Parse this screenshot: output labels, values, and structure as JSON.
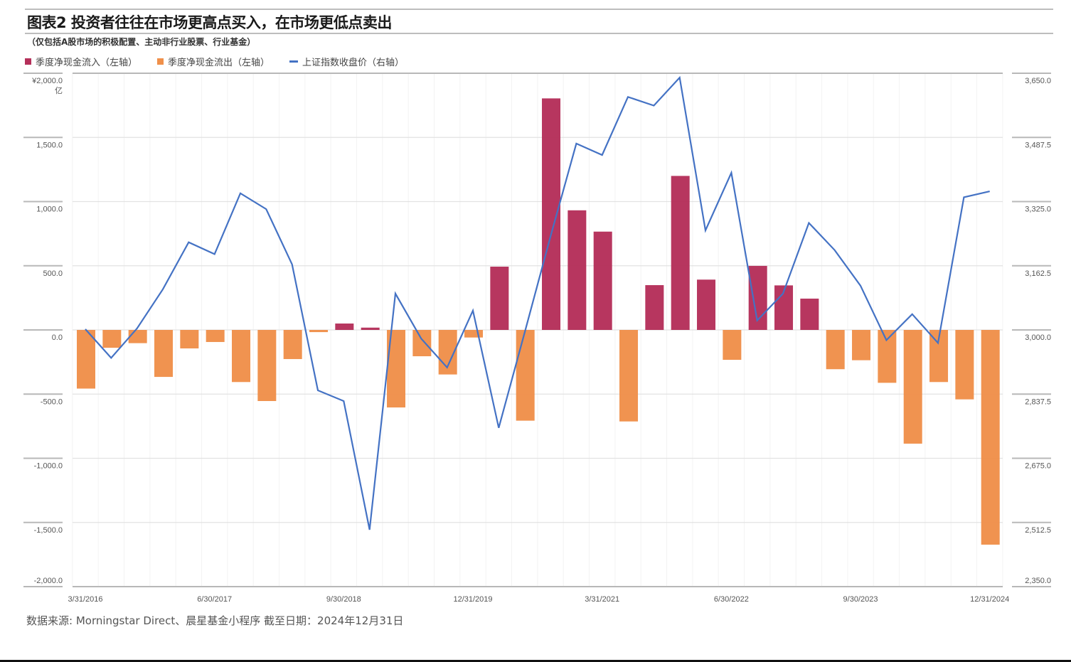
{
  "header": {
    "title": "图表2 投资者往往在市场更高点买入，在市场更低点卖出",
    "subtitle": "（仅包括A股市场的积极配置、主动非行业股票、行业基金）"
  },
  "legend": [
    {
      "label": "季度净现金流入（左轴）",
      "type": "square",
      "color": "#b5305a"
    },
    {
      "label": "季度净现金流出（左轴）",
      "type": "square",
      "color": "#f0904a"
    },
    {
      "label": "上证指数收盘价（右轴）",
      "type": "line",
      "color": "#4472c4"
    }
  ],
  "footer": {
    "source": "数据来源: Morningstar Direct、晨星基金小程序 截至日期：2024年12月31日"
  },
  "chart_data": {
    "type": "bar+line",
    "title": "图表2 投资者往往在市场更高点买入，在市场更低点卖出",
    "subtitle": "（仅包括A股市场的积极配置、主动非行业股票、行业基金）",
    "left_axis": {
      "label": "亿",
      "ylim": [
        -2000,
        2000
      ],
      "ticks": [
        "¥2,000.0",
        "1,500.0",
        "1,000.0",
        "500.0",
        "0.0",
        "-500.0",
        "-1,000.0",
        "-1,500.0",
        "-2,000.0"
      ],
      "tick_values": [
        2000,
        1500,
        1000,
        500,
        0,
        -500,
        -1000,
        -1500,
        -2000
      ]
    },
    "right_axis": {
      "ylim": [
        2350,
        3650
      ],
      "ticks": [
        "3,650.0",
        "3,487.5",
        "3,325.0",
        "3,162.5",
        "3,000.0",
        "2,837.5",
        "2,675.0",
        "2,512.5",
        "2,350.0"
      ],
      "tick_values": [
        3650,
        3487.5,
        3325,
        3162.5,
        3000,
        2837.5,
        2675,
        2512.5,
        2350
      ]
    },
    "x_tick_labels": [
      "3/31/2016",
      "6/30/2017",
      "9/30/2018",
      "12/31/2019",
      "3/31/2021",
      "6/30/2022",
      "9/30/2023",
      "12/31/2024"
    ],
    "x_tick_indices": [
      0,
      5,
      10,
      15,
      20,
      25,
      30,
      35
    ],
    "categories": [
      "3/31/2016",
      "6/30/2016",
      "9/30/2016",
      "12/31/2016",
      "3/31/2017",
      "6/30/2017",
      "9/30/2017",
      "12/31/2017",
      "3/31/2018",
      "6/30/2018",
      "9/30/2018",
      "12/31/2018",
      "3/31/2019",
      "6/30/2019",
      "9/30/2019",
      "12/31/2019",
      "3/31/2020",
      "6/30/2020",
      "9/30/2020",
      "12/31/2020",
      "3/31/2021",
      "6/30/2021",
      "9/30/2021",
      "12/31/2021",
      "3/31/2022",
      "6/30/2022",
      "9/30/2022",
      "12/31/2022",
      "3/31/2023",
      "6/30/2023",
      "9/30/2023",
      "12/31/2023",
      "3/31/2024",
      "6/30/2024",
      "9/30/2024",
      "12/31/2024"
    ],
    "series": [
      {
        "name": "季度净现金流（左轴）",
        "axis": "left",
        "type": "bar",
        "positive_color": "#b5305a",
        "negative_color": "#f0904a",
        "values": [
          -457,
          -139,
          -103,
          -366,
          -144,
          -94,
          -406,
          -554,
          -227,
          -17,
          50,
          18,
          -604,
          -205,
          -347,
          -59,
          493,
          -707,
          1804,
          932,
          766,
          -713,
          349,
          1200,
          392,
          -233,
          499,
          347,
          244,
          -306,
          -236,
          -412,
          -886,
          -406,
          -541,
          -1673
        ]
      },
      {
        "name": "上证指数收盘价（右轴）",
        "axis": "right",
        "type": "line",
        "color": "#4472c4",
        "values": [
          3002,
          2929,
          3004,
          3103,
          3222,
          3192,
          3346,
          3306,
          3166,
          2847,
          2820,
          2494,
          3092,
          2978,
          2905,
          3049,
          2752,
          2993,
          3236,
          3472,
          3443,
          3590,
          3568,
          3639,
          3252,
          3398,
          3024,
          3092,
          3271,
          3202,
          3112,
          2974,
          3040,
          2967,
          3336,
          3351
        ]
      }
    ],
    "grid": true,
    "legend_position": "top-left"
  }
}
